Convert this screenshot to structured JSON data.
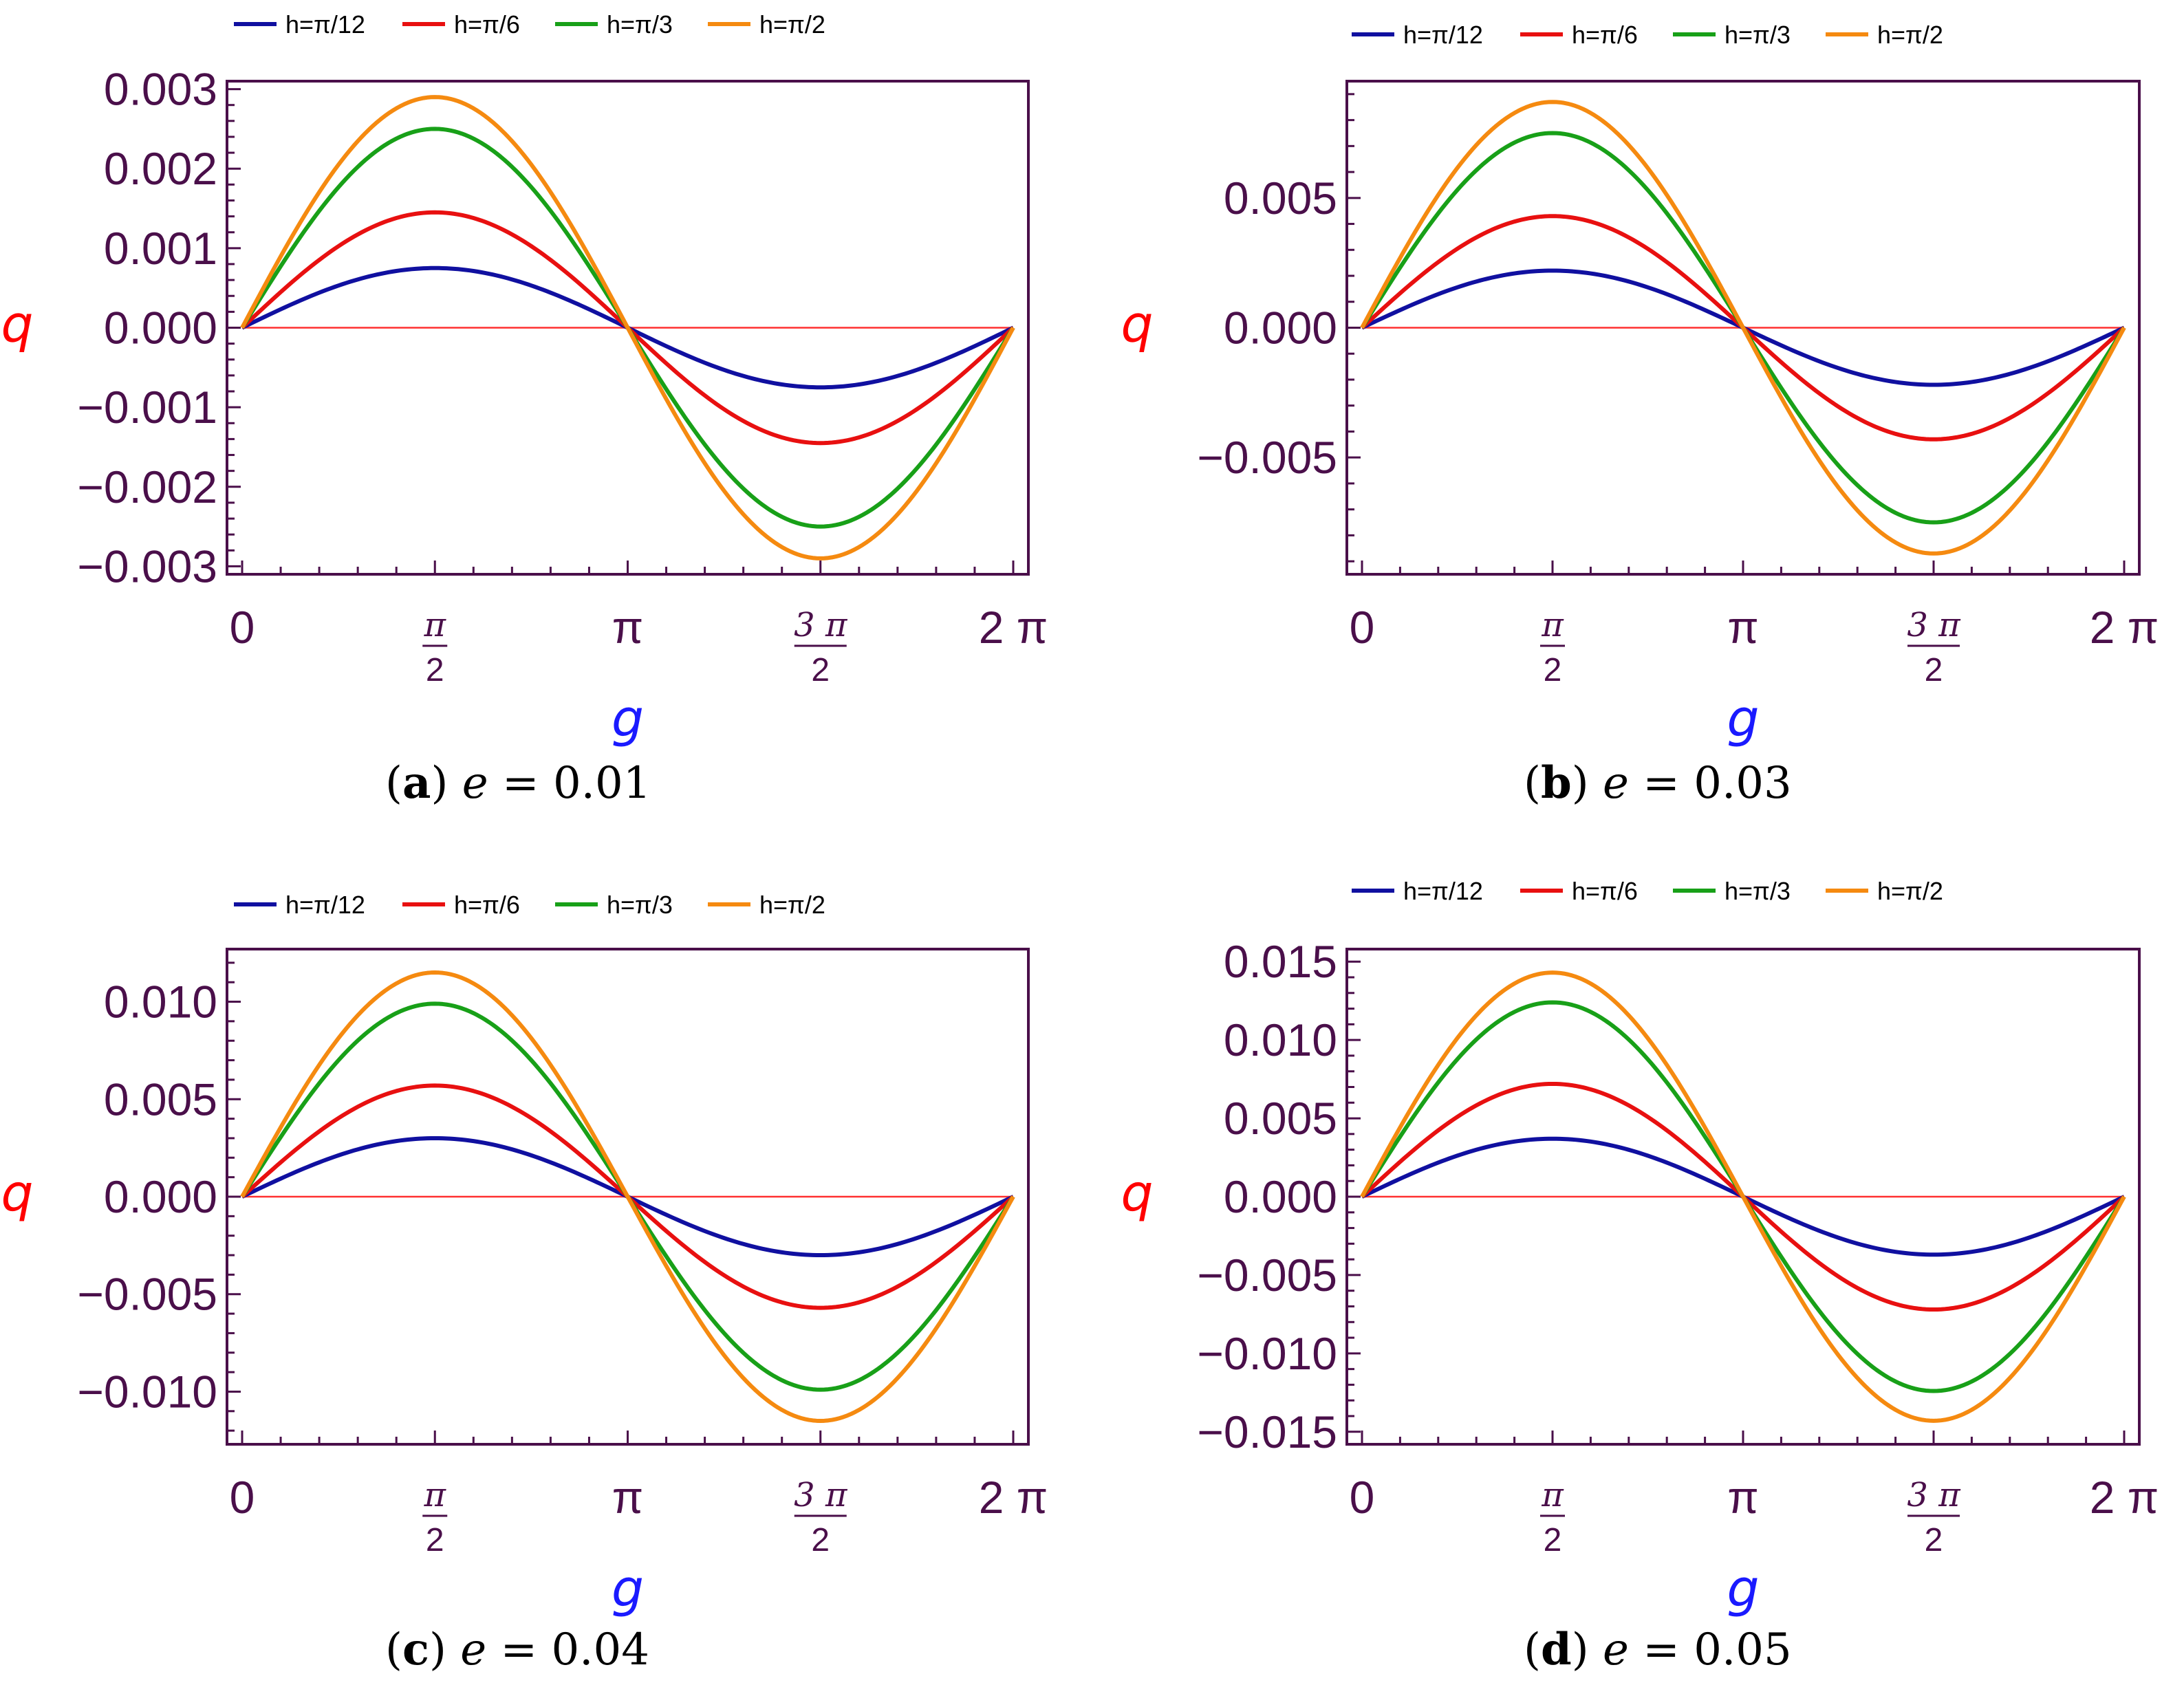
{
  "chart_data": [
    {
      "type": "line",
      "panel": "a",
      "caption_letter": "a",
      "caption_param": "e",
      "caption_value": "0.01",
      "xlabel": "g",
      "ylabel": "q",
      "xlim": [
        0,
        6.2832
      ],
      "ylim": [
        -0.0031,
        0.0031
      ],
      "x_ticks": [
        "0",
        "π/2",
        "π",
        "3 π/2",
        "2 π"
      ],
      "y_ticks": [
        "0.003",
        "0.002",
        "0.001",
        "0.000",
        "−0.001",
        "−0.002",
        "−0.003"
      ],
      "y_tick_values": [
        0.003,
        0.002,
        0.001,
        0,
        -0.001,
        -0.002,
        -0.003
      ],
      "legend_position": "top",
      "series": [
        {
          "name": "h=π/12",
          "color": "#1010a0",
          "amplitude": 0.00075
        },
        {
          "name": "h=π/6",
          "color": "#e81010",
          "amplitude": 0.00145
        },
        {
          "name": "h=π/3",
          "color": "#18a018",
          "amplitude": 0.0025
        },
        {
          "name": "h=π/2",
          "color": "#f58a10",
          "amplitude": 0.0029
        }
      ]
    },
    {
      "type": "line",
      "panel": "b",
      "caption_letter": "b",
      "caption_param": "e",
      "caption_value": "0.03",
      "xlabel": "g",
      "ylabel": "q",
      "xlim": [
        0,
        6.2832
      ],
      "ylim": [
        -0.0095,
        0.0095
      ],
      "x_ticks": [
        "0",
        "π/2",
        "π",
        "3 π/2",
        "2 π"
      ],
      "y_ticks": [
        "0.005",
        "0.000",
        "−0.005"
      ],
      "y_tick_values": [
        0.005,
        0,
        -0.005
      ],
      "legend_position": "top",
      "series": [
        {
          "name": "h=π/12",
          "color": "#1010a0",
          "amplitude": 0.0022
        },
        {
          "name": "h=π/6",
          "color": "#e81010",
          "amplitude": 0.0043
        },
        {
          "name": "h=π/3",
          "color": "#18a018",
          "amplitude": 0.0075
        },
        {
          "name": "h=π/2",
          "color": "#f58a10",
          "amplitude": 0.0087
        }
      ]
    },
    {
      "type": "line",
      "panel": "c",
      "caption_letter": "c",
      "caption_param": "e",
      "caption_value": "0.04",
      "xlabel": "g",
      "ylabel": "q",
      "xlim": [
        0,
        6.2832
      ],
      "ylim": [
        -0.0127,
        0.0127
      ],
      "x_ticks": [
        "0",
        "π/2",
        "π",
        "3 π/2",
        "2 π"
      ],
      "y_ticks": [
        "0.010",
        "0.005",
        "0.000",
        "−0.005",
        "−0.010"
      ],
      "y_tick_values": [
        0.01,
        0.005,
        0,
        -0.005,
        -0.01
      ],
      "legend_position": "top",
      "series": [
        {
          "name": "h=π/12",
          "color": "#1010a0",
          "amplitude": 0.003
        },
        {
          "name": "h=π/6",
          "color": "#e81010",
          "amplitude": 0.0057
        },
        {
          "name": "h=π/3",
          "color": "#18a018",
          "amplitude": 0.0099
        },
        {
          "name": "h=π/2",
          "color": "#f58a10",
          "amplitude": 0.0115
        }
      ]
    },
    {
      "type": "line",
      "panel": "d",
      "caption_letter": "d",
      "caption_param": "e",
      "caption_value": "0.05",
      "xlabel": "g",
      "ylabel": "q",
      "xlim": [
        0,
        6.2832
      ],
      "ylim": [
        -0.0158,
        0.0158
      ],
      "x_ticks": [
        "0",
        "π/2",
        "π",
        "3 π/2",
        "2 π"
      ],
      "y_ticks": [
        "0.015",
        "0.010",
        "0.005",
        "0.000",
        "−0.005",
        "−0.010",
        "−0.015"
      ],
      "y_tick_values": [
        0.015,
        0.01,
        0.005,
        0,
        -0.005,
        -0.01,
        -0.015
      ],
      "legend_position": "top",
      "series": [
        {
          "name": "h=π/12",
          "color": "#1010a0",
          "amplitude": 0.0037
        },
        {
          "name": "h=π/6",
          "color": "#e81010",
          "amplitude": 0.0072
        },
        {
          "name": "h=π/3",
          "color": "#18a018",
          "amplitude": 0.0124
        },
        {
          "name": "h=π/2",
          "color": "#f58a10",
          "amplitude": 0.0143
        }
      ]
    }
  ],
  "colors": {
    "frame": "#4a0f4a",
    "zero_line": "#ff3030",
    "xlabel": "#1a1aff",
    "ylabel": "#ff0000"
  }
}
